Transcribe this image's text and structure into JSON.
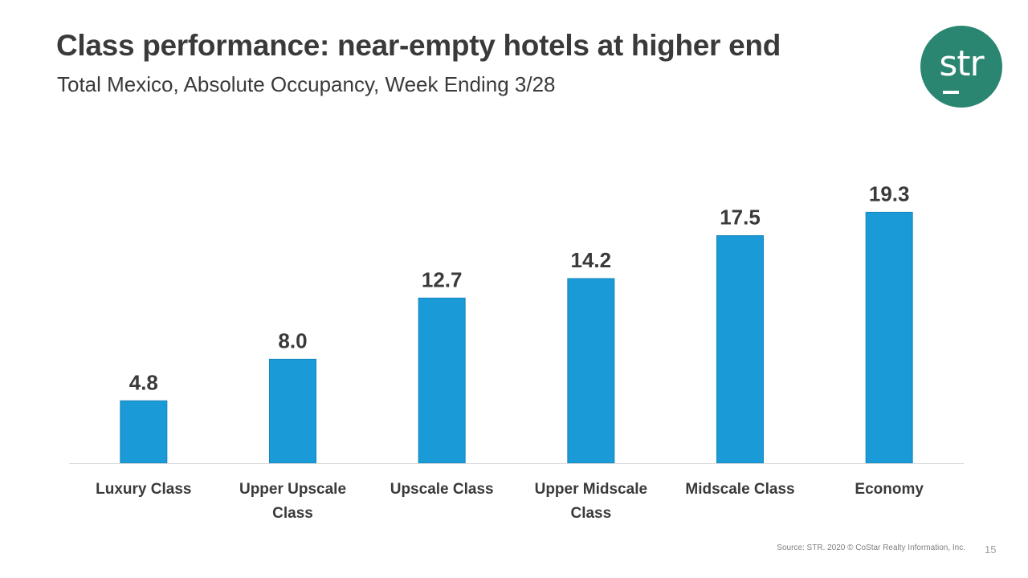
{
  "slide": {
    "title": "Class performance: near-empty hotels at higher end",
    "subtitle": "Total Mexico, Absolute Occupancy, Week Ending 3/28",
    "source": "Source: STR. 2020 © CoStar Realty Information, Inc.",
    "page_number": "15",
    "logo_text": "str",
    "logo_color": "#2a8571"
  },
  "chart_data": {
    "type": "bar",
    "categories": [
      "Luxury Class",
      "Upper Upscale Class",
      "Upscale Class",
      "Upper Midscale Class",
      "Midscale Class",
      "Economy"
    ],
    "category_lines": [
      [
        "Luxury Class"
      ],
      [
        "Upper Upscale",
        "Class"
      ],
      [
        "Upscale Class"
      ],
      [
        "Upper Midscale",
        "Class"
      ],
      [
        "Midscale Class"
      ],
      [
        "Economy"
      ]
    ],
    "values": [
      4.8,
      8.0,
      12.7,
      14.2,
      17.5,
      19.3
    ],
    "value_labels": [
      "4.8",
      "8.0",
      "12.7",
      "14.2",
      "17.5",
      "19.3"
    ],
    "title": "",
    "xlabel": "",
    "ylabel": "",
    "ylim": [
      0,
      21.3
    ],
    "grid": false,
    "legend": "none",
    "bar_color": "#1a9ad6"
  }
}
